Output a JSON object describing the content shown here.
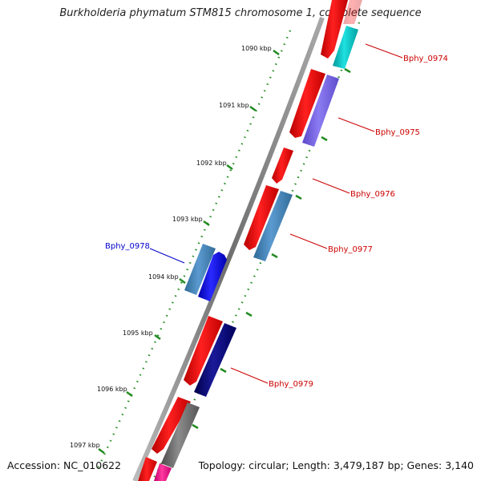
{
  "title": "Burkholderia phymatum STM815 chromosome 1, complete sequence",
  "footer": {
    "accession": "Accession: NC_010622",
    "topology": "Topology: circular; Length: 3,479,187 bp; Genes: 3,140"
  },
  "kbp_labels": [
    "1090 kbp",
    "1091 kbp",
    "1092 kbp",
    "1093 kbp",
    "1094 kbp",
    "1095 kbp",
    "1096 kbp",
    "1097 kbp"
  ],
  "gene_labels": [
    {
      "text": "Bphy_0974",
      "strand": "forward",
      "color": "#cc0000"
    },
    {
      "text": "Bphy_0975",
      "strand": "forward",
      "color": "#cc0000"
    },
    {
      "text": "Bphy_0976",
      "strand": "forward",
      "color": "#cc0000"
    },
    {
      "text": "Bphy_0977",
      "strand": "forward",
      "color": "#cc0000"
    },
    {
      "text": "Bphy_0978",
      "strand": "reverse",
      "color": "#0000cc"
    },
    {
      "text": "Bphy_0979",
      "strand": "forward",
      "color": "#cc0000"
    }
  ],
  "feature_colors": {
    "cds": "#ff0000",
    "teal": "#00cccc",
    "purple": "#7b68ee",
    "steelblue": "#4682b4",
    "blue": "#0000ff",
    "navy": "#000080",
    "gray": "#707070",
    "pink": "#ff1493",
    "backbone": "#888888",
    "ticks": "#228b22"
  }
}
